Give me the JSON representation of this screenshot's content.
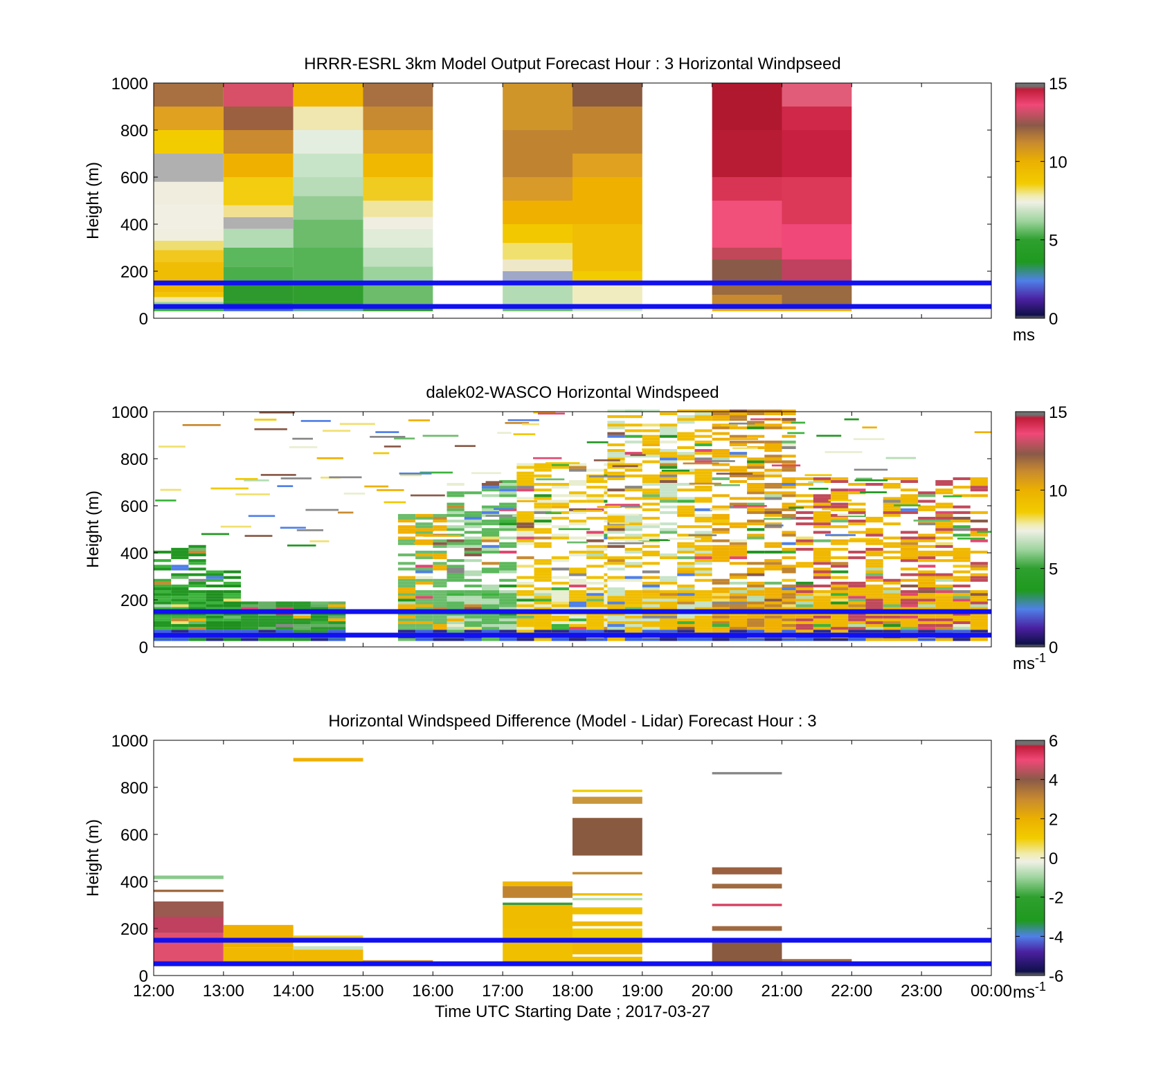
{
  "chart_data": [
    {
      "type": "heatmap",
      "title": "HRRR-ESRL 3km Model Output   Forecast Hour : 3 Horizontal Windpseed",
      "ylabel": "Height (m)",
      "xlabel": "",
      "ylim": [
        0,
        1000
      ],
      "yticks": [
        "0",
        "200",
        "400",
        "600",
        "800",
        "1000"
      ],
      "xlim_hours": [
        12,
        24
      ],
      "colorbar": {
        "ticks": [
          "0",
          "5",
          "10",
          "15"
        ],
        "tick_values": [
          0,
          5,
          10,
          15
        ],
        "range": [
          0,
          15
        ],
        "unit": "ms",
        "unit_sup": ""
      },
      "reference_lines_m": [
        150,
        50
      ],
      "cells": [
        [
          12,
          13,
          30,
          50,
          "#3cb33c"
        ],
        [
          12,
          13,
          50,
          70,
          "#9cd39c"
        ],
        [
          12,
          13,
          70,
          90,
          "#f0e6a8"
        ],
        [
          12,
          13,
          90,
          110,
          "#f2c500"
        ],
        [
          12,
          13,
          110,
          160,
          "#f0b800"
        ],
        [
          12,
          13,
          160,
          240,
          "#f0bd05"
        ],
        [
          12,
          13,
          240,
          290,
          "#f0c81e"
        ],
        [
          12,
          13,
          290,
          330,
          "#eedd70"
        ],
        [
          12,
          13,
          330,
          380,
          "#f0eede"
        ],
        [
          12,
          13,
          380,
          480,
          "#f1efe3"
        ],
        [
          12,
          13,
          480,
          580,
          "#f0eddf"
        ],
        [
          12,
          13,
          580,
          700,
          "#b0b0b0"
        ],
        [
          12,
          13,
          700,
          800,
          "#f3cc00"
        ],
        [
          12,
          13,
          800,
          900,
          "#e0a020"
        ],
        [
          12,
          13,
          900,
          1000,
          "#a87040"
        ],
        [
          13,
          14,
          30,
          50,
          "#4060e0"
        ],
        [
          13,
          14,
          50,
          70,
          "#229622"
        ],
        [
          13,
          14,
          70,
          150,
          "#2e9a2e"
        ],
        [
          13,
          14,
          150,
          220,
          "#4aaf4a"
        ],
        [
          13,
          14,
          220,
          300,
          "#5cb85c"
        ],
        [
          13,
          14,
          300,
          380,
          "#b4dcb4"
        ],
        [
          13,
          14,
          380,
          430,
          "#b0b0b0"
        ],
        [
          13,
          14,
          430,
          480,
          "#f0e090"
        ],
        [
          13,
          14,
          480,
          600,
          "#f2cd10"
        ],
        [
          13,
          14,
          600,
          700,
          "#f0b000"
        ],
        [
          13,
          14,
          700,
          800,
          "#c98a30"
        ],
        [
          13,
          14,
          800,
          900,
          "#9a6040"
        ],
        [
          13,
          14,
          900,
          1000,
          "#d85068"
        ],
        [
          14,
          15,
          30,
          50,
          "#60a8a0"
        ],
        [
          14,
          15,
          50,
          150,
          "#2f9e2f"
        ],
        [
          14,
          15,
          150,
          300,
          "#56b456"
        ],
        [
          14,
          15,
          300,
          420,
          "#6cbc6c"
        ],
        [
          14,
          15,
          420,
          520,
          "#94cc94"
        ],
        [
          14,
          15,
          520,
          600,
          "#b8dcb8"
        ],
        [
          14,
          15,
          600,
          700,
          "#c8e4c8"
        ],
        [
          14,
          15,
          700,
          800,
          "#e4eee0"
        ],
        [
          14,
          15,
          800,
          900,
          "#efe6b0"
        ],
        [
          14,
          15,
          900,
          1000,
          "#f0b500"
        ],
        [
          15,
          16,
          30,
          50,
          "#2a962a"
        ],
        [
          15,
          16,
          50,
          150,
          "#6cbc6c"
        ],
        [
          15,
          16,
          150,
          220,
          "#9cd29c"
        ],
        [
          15,
          16,
          220,
          300,
          "#c0e0c0"
        ],
        [
          15,
          16,
          300,
          380,
          "#e0ecd8"
        ],
        [
          15,
          16,
          380,
          430,
          "#efeee0"
        ],
        [
          15,
          16,
          430,
          500,
          "#efe4a0"
        ],
        [
          15,
          16,
          500,
          600,
          "#f0cc20"
        ],
        [
          15,
          16,
          600,
          700,
          "#f0b800"
        ],
        [
          15,
          16,
          700,
          800,
          "#e0a020"
        ],
        [
          15,
          16,
          800,
          900,
          "#c88a30"
        ],
        [
          15,
          16,
          900,
          1000,
          "#a87040"
        ],
        [
          17,
          18,
          30,
          50,
          "#6cbc6c"
        ],
        [
          17,
          18,
          50,
          150,
          "#b4dcb4"
        ],
        [
          17,
          18,
          150,
          200,
          "#a0a8c8"
        ],
        [
          17,
          18,
          200,
          250,
          "#efe8c8"
        ],
        [
          17,
          18,
          250,
          320,
          "#f0e070"
        ],
        [
          17,
          18,
          320,
          400,
          "#f2c800"
        ],
        [
          17,
          18,
          400,
          500,
          "#f0b000"
        ],
        [
          17,
          18,
          500,
          600,
          "#d89a28"
        ],
        [
          17,
          18,
          600,
          800,
          "#c08430"
        ],
        [
          17,
          18,
          800,
          1000,
          "#d09528"
        ],
        [
          18,
          19,
          30,
          50,
          "#c8e4c8"
        ],
        [
          18,
          19,
          50,
          150,
          "#f0ecc0"
        ],
        [
          18,
          19,
          150,
          200,
          "#f3cc00"
        ],
        [
          18,
          19,
          200,
          400,
          "#f0be05"
        ],
        [
          18,
          19,
          400,
          600,
          "#f0b000"
        ],
        [
          18,
          19,
          600,
          700,
          "#e0a020"
        ],
        [
          18,
          19,
          700,
          900,
          "#c08430"
        ],
        [
          18,
          19,
          900,
          1000,
          "#8a5a40"
        ],
        [
          20,
          21,
          30,
          50,
          "#f0b000"
        ],
        [
          20,
          21,
          50,
          100,
          "#c88a30"
        ],
        [
          20,
          21,
          100,
          150,
          "#9a6a40"
        ],
        [
          20,
          21,
          150,
          250,
          "#8a5a48"
        ],
        [
          20,
          21,
          250,
          300,
          "#c04858"
        ],
        [
          20,
          21,
          300,
          400,
          "#f0507a"
        ],
        [
          20,
          21,
          400,
          500,
          "#f0507a"
        ],
        [
          20,
          21,
          500,
          600,
          "#d83555"
        ],
        [
          20,
          21,
          600,
          800,
          "#b81c34"
        ],
        [
          20,
          21,
          800,
          1000,
          "#b01830"
        ],
        [
          21,
          22,
          30,
          50,
          "#f0b000"
        ],
        [
          21,
          22,
          50,
          150,
          "#9a6a40"
        ],
        [
          21,
          22,
          150,
          250,
          "#c04060"
        ],
        [
          21,
          22,
          250,
          400,
          "#f04878"
        ],
        [
          21,
          22,
          400,
          600,
          "#dc3858"
        ],
        [
          21,
          22,
          600,
          800,
          "#c82040"
        ],
        [
          21,
          22,
          800,
          900,
          "#d02848"
        ],
        [
          21,
          22,
          900,
          1000,
          "#e05c78"
        ]
      ]
    },
    {
      "type": "heatmap",
      "title": "dalek02-WASCO  Horizontal Windspeed",
      "ylabel": "Height (m)",
      "xlabel": "",
      "ylim": [
        0,
        1000
      ],
      "yticks": [
        "0",
        "200",
        "400",
        "600",
        "800",
        "1000"
      ],
      "xlim_hours": [
        12,
        24
      ],
      "colorbar": {
        "ticks": [
          "0",
          "5",
          "10",
          "15"
        ],
        "tick_values": [
          0,
          5,
          10,
          15
        ],
        "range": [
          0,
          15
        ],
        "unit": "ms",
        "unit_sup": "-1"
      },
      "reference_lines_m": [
        150,
        50
      ],
      "profiles": [
        {
          "h": [
            12.0,
            12.75
          ],
          "top": 430,
          "base": "#229622",
          "accent": "#3cb33c"
        },
        {
          "h": [
            12.75,
            13.25
          ],
          "top": 320,
          "base": "#1f8f1f",
          "accent": "#3cb33c"
        },
        {
          "h": [
            13.25,
            14.75
          ],
          "top": 190,
          "base": "#2a9a2a",
          "accent": "#66b066"
        },
        {
          "h": [
            15.5,
            16.2
          ],
          "top": 560,
          "base": "#6cbc6c",
          "accent": "#f0b000"
        },
        {
          "h": [
            16.2,
            17.2
          ],
          "top": 700,
          "base": "#5cb85c",
          "accent": "#b4dcb4"
        },
        {
          "h": [
            17.2,
            18.5
          ],
          "top": 780,
          "base": "#f0c000",
          "accent": "#e8eed0"
        },
        {
          "h": [
            18.5,
            20.0
          ],
          "top": 1000,
          "base": "#f0bc00",
          "accent": "#c8e4c8"
        },
        {
          "h": [
            20.0,
            21.2
          ],
          "top": 1000,
          "base": "#f0b000",
          "accent": "#c08430"
        },
        {
          "h": [
            21.2,
            23.95
          ],
          "top": 720,
          "base": "#f0b800",
          "accent": "#c04a5a"
        }
      ]
    },
    {
      "type": "heatmap",
      "title": "Horizontal Windspeed Difference (Model - Lidar) Forecast Hour : 3",
      "ylabel": "Height (m)",
      "xlabel": "Time UTC  Starting Date ; 2017-03-27",
      "ylim": [
        0,
        1000
      ],
      "yticks": [
        "0",
        "200",
        "400",
        "600",
        "800",
        "1000"
      ],
      "xticks": [
        "12:00",
        "13:00",
        "14:00",
        "15:00",
        "16:00",
        "17:00",
        "18:00",
        "19:00",
        "20:00",
        "21:00",
        "22:00",
        "23:00",
        "00:00"
      ],
      "xlim_hours": [
        12,
        24
      ],
      "colorbar": {
        "ticks": [
          "-6",
          "-4",
          "-2",
          "0",
          "2",
          "4",
          "6"
        ],
        "tick_values": [
          -6,
          -4,
          -2,
          0,
          2,
          4,
          6
        ],
        "range": [
          -6,
          6
        ],
        "unit": "ms",
        "unit_sup": "-1"
      },
      "reference_lines_m": [
        150,
        50
      ],
      "cells": [
        [
          12,
          13,
          410,
          425,
          "#8cc88c"
        ],
        [
          12,
          13,
          355,
          365,
          "#a06a40"
        ],
        [
          12,
          13,
          250,
          315,
          "#9a5a50"
        ],
        [
          12,
          13,
          180,
          250,
          "#c04060"
        ],
        [
          12,
          13,
          60,
          180,
          "#e0506e"
        ],
        [
          12,
          13,
          40,
          60,
          "#c08a40"
        ],
        [
          13,
          14,
          120,
          215,
          "#f0b000"
        ],
        [
          13,
          14,
          60,
          120,
          "#f0b800"
        ],
        [
          13,
          14,
          40,
          60,
          "#d89a28"
        ],
        [
          14,
          15,
          910,
          925,
          "#f0b000"
        ],
        [
          14,
          15,
          160,
          170,
          "#f0cc20"
        ],
        [
          14,
          15,
          110,
          125,
          "#c8e4c8"
        ],
        [
          14,
          15,
          60,
          110,
          "#f0b800"
        ],
        [
          14,
          15,
          40,
          60,
          "#f0c000"
        ],
        [
          15,
          16,
          40,
          65,
          "#d08a30"
        ],
        [
          17,
          18,
          380,
          400,
          "#f0b800"
        ],
        [
          17,
          18,
          330,
          380,
          "#c08430"
        ],
        [
          17,
          18,
          300,
          310,
          "#3c9a3c"
        ],
        [
          17,
          18,
          200,
          300,
          "#f0bc00"
        ],
        [
          17,
          18,
          60,
          200,
          "#f0c000"
        ],
        [
          17,
          18,
          40,
          60,
          "#f0e080"
        ],
        [
          18,
          19,
          780,
          790,
          "#f0cc00"
        ],
        [
          18,
          19,
          730,
          760,
          "#c8963c"
        ],
        [
          18,
          19,
          510,
          670,
          "#8a5a40"
        ],
        [
          18,
          19,
          430,
          440,
          "#c08a30"
        ],
        [
          18,
          19,
          340,
          350,
          "#f0c000"
        ],
        [
          18,
          19,
          320,
          330,
          "#b4dcb4"
        ],
        [
          18,
          19,
          260,
          290,
          "#f0c000"
        ],
        [
          18,
          19,
          210,
          230,
          "#f0b800"
        ],
        [
          18,
          19,
          160,
          200,
          "#f0cc00"
        ],
        [
          18,
          19,
          90,
          140,
          "#f0b800"
        ],
        [
          18,
          19,
          50,
          80,
          "#f0c000"
        ],
        [
          20,
          21,
          855,
          865,
          "#888888"
        ],
        [
          20,
          21,
          430,
          460,
          "#9a6040"
        ],
        [
          20,
          21,
          370,
          390,
          "#a06a40"
        ],
        [
          20,
          21,
          295,
          305,
          "#d84060"
        ],
        [
          20,
          21,
          190,
          210,
          "#a06a40"
        ],
        [
          20,
          21,
          60,
          150,
          "#8a5a40"
        ],
        [
          20,
          21,
          40,
          60,
          "#c08430"
        ],
        [
          21,
          22,
          60,
          70,
          "#a06a40"
        ],
        [
          21,
          22,
          40,
          50,
          "#f0c000"
        ]
      ]
    }
  ]
}
